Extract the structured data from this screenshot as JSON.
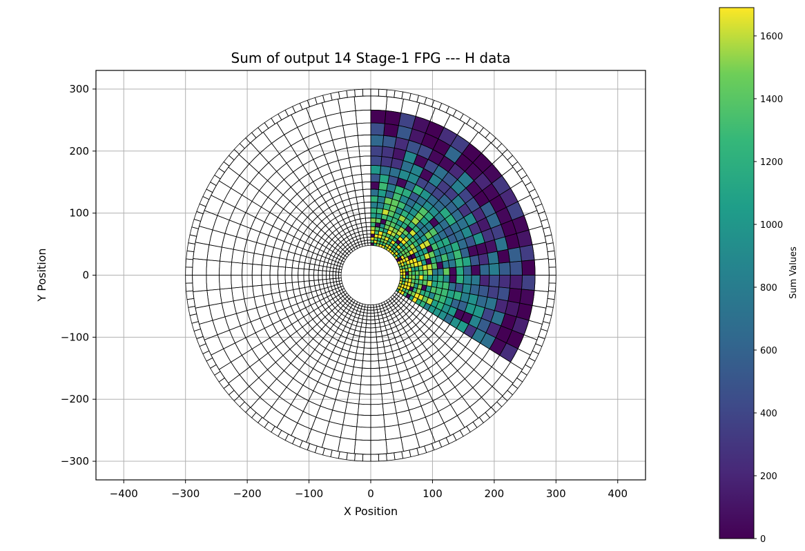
{
  "chart_data": {
    "type": "heatmap",
    "title": "Sum of output 14 Stage-1 FPG --- H data",
    "xlabel": "X Position",
    "ylabel": "Y Position",
    "xlim": [
      -445,
      445
    ],
    "ylim": [
      -330,
      330
    ],
    "xticks": [
      -400,
      -300,
      -200,
      -100,
      0,
      100,
      200,
      300,
      400
    ],
    "yticks": [
      -300,
      -200,
      -100,
      0,
      100,
      200,
      300
    ],
    "grid": true,
    "colorbar": {
      "label": "Sum Values",
      "range": [
        0,
        1690
      ],
      "ticks": [
        0,
        200,
        400,
        600,
        800,
        1000,
        1200,
        1400,
        1600
      ],
      "colormap": "viridis"
    },
    "detector": {
      "inner_radius": 48,
      "outer_radius": 300,
      "filled_sector_deg": [
        -35,
        90
      ],
      "filled_outer_radius": 246
    }
  }
}
